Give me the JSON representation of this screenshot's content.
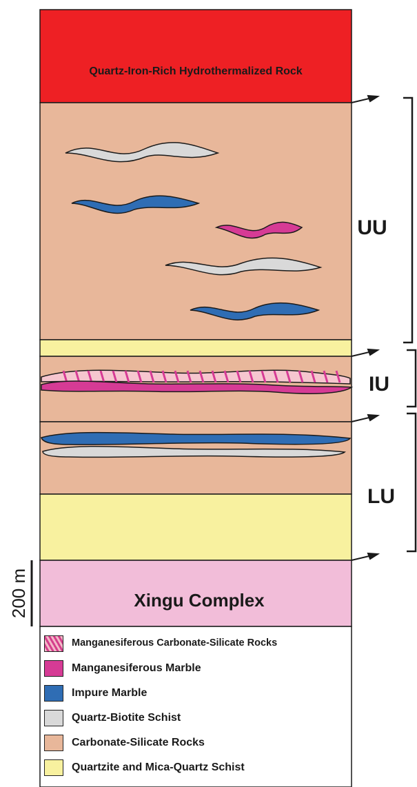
{
  "colors": {
    "hydrothermal": "#ee2024",
    "carbonate_silicate": "#e8b79a",
    "quartzite": "#f8f19f",
    "xingu": "#f2bdd9",
    "mn_marble": "#d63b95",
    "impure_marble": "#2f6db4",
    "schist": "#d9d9d9",
    "mn_carbonate_silicate": "#f6c6cf",
    "hatch": "#d63b95",
    "outline": "#1a1a1a"
  },
  "column": {
    "top_unit_label": "Quartz-Iron-Rich Hydrothermalized Rock",
    "basement_label": "Xingu Complex",
    "units": [
      {
        "label": "UU",
        "icon": "bracket-icon"
      },
      {
        "label": "IU",
        "icon": "bracket-icon"
      },
      {
        "label": "LU",
        "icon": "bracket-icon"
      }
    ],
    "scale_bar_label": "200 m"
  },
  "legend": {
    "items": [
      {
        "label": "Manganesiferous Carbonate-Silicate Rocks",
        "color": "#f6c6cf",
        "pattern": "hatched"
      },
      {
        "label": "Manganesiferous Marble",
        "color": "#d63b95"
      },
      {
        "label": "Impure Marble",
        "color": "#2f6db4"
      },
      {
        "label": "Quartz-Biotite Schist",
        "color": "#d9d9d9"
      },
      {
        "label": "Carbonate-Silicate Rocks",
        "color": "#e8b79a"
      },
      {
        "label": "Quartzite and Mica-Quartz Schist",
        "color": "#f8f19f"
      }
    ]
  }
}
